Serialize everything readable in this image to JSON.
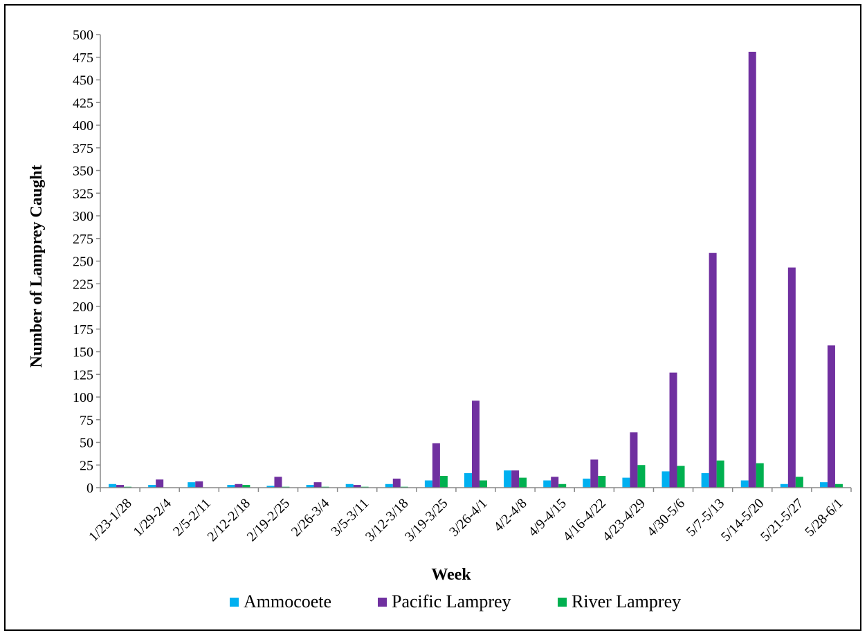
{
  "chart_data": {
    "type": "bar",
    "xlabel": "Week",
    "ylabel": "Number of Lamprey Caught",
    "ylim": [
      0,
      500
    ],
    "ytick_step": 25,
    "yticks": [
      "0",
      "25",
      "50",
      "75",
      "100",
      "125",
      "150",
      "175",
      "200",
      "225",
      "250",
      "275",
      "300",
      "325",
      "350",
      "375",
      "400",
      "425",
      "450",
      "475",
      "500"
    ],
    "grid": false,
    "legend_position": "bottom",
    "categories": [
      "1/23-1/28",
      "1/29-2/4",
      "2/5-2/11",
      "2/12-2/18",
      "2/19-2/25",
      "2/26-3/4",
      "3/5-3/11",
      "3/12-3/18",
      "3/19-3/25",
      "3/26-4/1",
      "4/2-4/8",
      "4/9-4/15",
      "4/16-4/22",
      "4/23-4/29",
      "4/30-5/6",
      "5/7-5/13",
      "5/14-5/20",
      "5/21-5/27",
      "5/28-6/1"
    ],
    "series": [
      {
        "name": "Ammocoete",
        "color": "#00B0F0",
        "values": [
          4,
          3,
          6,
          3,
          2,
          3,
          4,
          4,
          8,
          16,
          19,
          8,
          10,
          11,
          18,
          16,
          8,
          4,
          6
        ]
      },
      {
        "name": "Pacific Lamprey",
        "color": "#7030A0",
        "values": [
          3,
          9,
          7,
          4,
          12,
          6,
          3,
          10,
          49,
          96,
          19,
          12,
          31,
          61,
          127,
          259,
          481,
          243,
          157
        ]
      },
      {
        "name": "River Lamprey",
        "color": "#00B050",
        "values": [
          1,
          0,
          0,
          3,
          1,
          1,
          1,
          1,
          13,
          8,
          11,
          4,
          13,
          25,
          24,
          30,
          27,
          12,
          4
        ]
      }
    ]
  }
}
